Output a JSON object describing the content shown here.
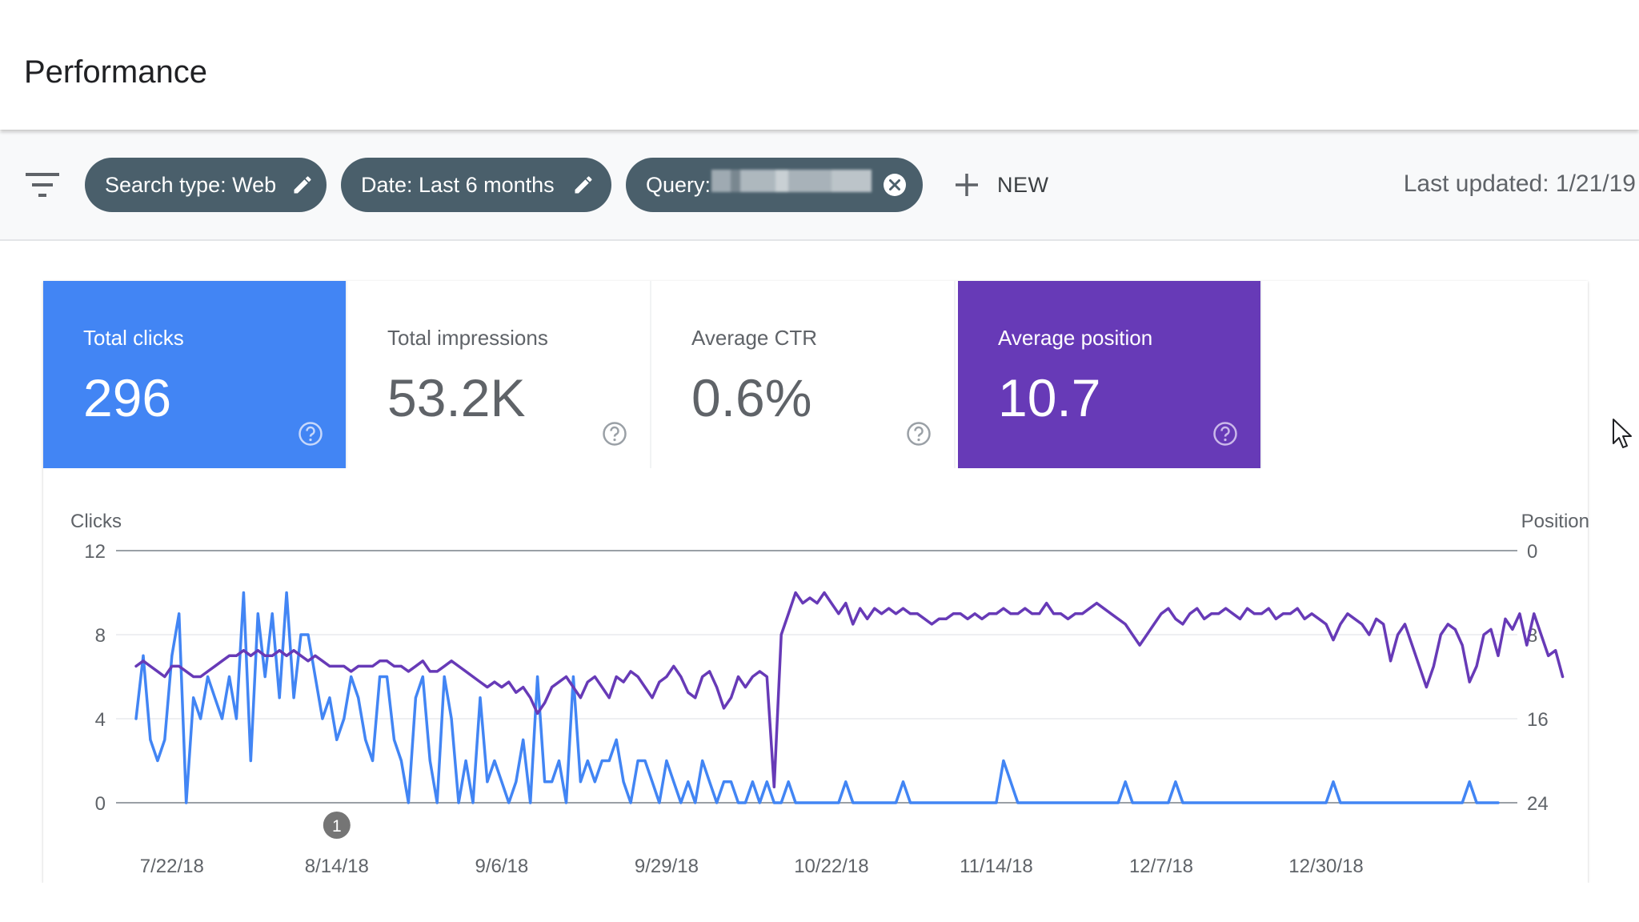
{
  "page": {
    "title": "Performance"
  },
  "filters": {
    "chips": [
      {
        "label": "Search type: Web"
      },
      {
        "label": "Date: Last 6 months"
      },
      {
        "label": "Query:"
      }
    ],
    "new_label": "NEW",
    "last_updated": "Last updated: 1/21/19"
  },
  "metrics": [
    {
      "label": "Total clicks",
      "value": "296",
      "selected": true,
      "color": "#4285f4"
    },
    {
      "label": "Total impressions",
      "value": "53.2K",
      "selected": false
    },
    {
      "label": "Average CTR",
      "value": "0.6%",
      "selected": false
    },
    {
      "label": "Average position",
      "value": "10.7",
      "selected": true,
      "color": "#673ab7"
    }
  ],
  "chart_data": {
    "type": "line",
    "left_axis_title": "Clicks",
    "right_axis_title": "Position",
    "left_ticks": [
      "12",
      "8",
      "4",
      "0"
    ],
    "right_ticks": [
      "0",
      "8",
      "16",
      "24"
    ],
    "ylim_left": [
      0,
      12
    ],
    "ylim_right_inverted": [
      0,
      24
    ],
    "x_ticks": [
      {
        "label": "7/22/18",
        "day": 5
      },
      {
        "label": "8/14/18",
        "day": 28
      },
      {
        "label": "9/6/18",
        "day": 51
      },
      {
        "label": "9/29/18",
        "day": 74
      },
      {
        "label": "10/22/18",
        "day": 97
      },
      {
        "label": "11/14/18",
        "day": 120
      },
      {
        "label": "12/7/18",
        "day": 143
      },
      {
        "label": "12/30/18",
        "day": 166
      }
    ],
    "annotation": {
      "label": "1",
      "day": 28
    },
    "series": [
      {
        "name": "Clicks",
        "axis": "left",
        "color": "#4285f4",
        "values": [
          4,
          7,
          3,
          2,
          3,
          7,
          9,
          0,
          5,
          4,
          6,
          5,
          4,
          6,
          4,
          10,
          2,
          9,
          6,
          9,
          5,
          10,
          5,
          8,
          8,
          6,
          4,
          5,
          3,
          4,
          6,
          5,
          3,
          2,
          6,
          6,
          3,
          2,
          0,
          5,
          6,
          2,
          0,
          6,
          4,
          0,
          2,
          0,
          5,
          1,
          2,
          1,
          0,
          1,
          3,
          0,
          6,
          1,
          1,
          2,
          0,
          6,
          1,
          2,
          1,
          2,
          2,
          3,
          1,
          0,
          2,
          2,
          1,
          0,
          2,
          1,
          0,
          1,
          0,
          2,
          1,
          0,
          1,
          1,
          0,
          0,
          1,
          0,
          1,
          0,
          0,
          1,
          0,
          0,
          0,
          0,
          0,
          0,
          0,
          1,
          0,
          0,
          0,
          0,
          0,
          0,
          0,
          1,
          0,
          0,
          0,
          0,
          0,
          0,
          0,
          0,
          0,
          0,
          0,
          0,
          0,
          2,
          1,
          0,
          0,
          0,
          0,
          0,
          0,
          0,
          0,
          0,
          0,
          0,
          0,
          0,
          0,
          0,
          1,
          0,
          0,
          0,
          0,
          0,
          0,
          1,
          0,
          0,
          0,
          0,
          0,
          0,
          0,
          0,
          0,
          0,
          0,
          0,
          0,
          0,
          0,
          0,
          0,
          0,
          0,
          0,
          0,
          1,
          0,
          0,
          0,
          0,
          0,
          0,
          0,
          0,
          0,
          0,
          0,
          0,
          0,
          0,
          0,
          0,
          0,
          0,
          1,
          0,
          0,
          0,
          0
        ]
      },
      {
        "name": "Position",
        "axis": "right",
        "color": "#673ab7",
        "values": [
          11,
          10.5,
          11,
          11.5,
          12,
          11,
          11,
          11.5,
          12,
          12,
          11.5,
          11,
          10.5,
          10,
          10,
          9.5,
          10,
          9.5,
          10,
          10,
          9.5,
          10,
          9.5,
          10,
          10.5,
          10,
          10.5,
          11,
          11,
          11,
          11.5,
          11,
          11,
          11,
          10.5,
          10.5,
          11,
          11,
          11.5,
          11,
          10.5,
          11.5,
          11.5,
          11,
          10.5,
          11,
          11.5,
          12,
          12.5,
          13,
          12.5,
          13,
          12.5,
          13.5,
          13,
          14,
          15.5,
          14.5,
          13,
          12.5,
          12,
          13,
          14,
          12.5,
          12,
          13,
          14,
          12,
          12.5,
          11.5,
          12,
          13,
          14,
          12.5,
          12,
          11,
          12,
          13.5,
          14,
          12,
          11.5,
          13,
          15,
          14,
          12,
          13,
          12,
          11.5,
          12,
          22.5,
          8,
          6,
          4,
          5,
          4.5,
          5,
          4,
          5,
          6,
          5,
          7,
          5.5,
          6.5,
          5.5,
          6,
          5.5,
          6,
          5.5,
          6,
          6,
          6.5,
          7,
          6.5,
          6.5,
          6,
          6,
          6.5,
          6,
          6.5,
          6,
          6,
          5.5,
          6,
          6,
          5.5,
          6,
          6,
          5,
          6,
          6,
          6.5,
          6,
          6,
          5.5,
          5,
          5.5,
          6,
          6.5,
          7,
          8,
          9,
          8,
          7,
          6,
          5.5,
          6.5,
          7,
          6,
          5.5,
          6.5,
          6,
          6,
          5.5,
          6,
          6.5,
          5.5,
          6,
          6,
          5.5,
          6.5,
          6,
          6,
          5.5,
          6.5,
          6,
          6.5,
          7,
          8.5,
          7,
          6,
          6.5,
          7,
          8,
          6.5,
          7,
          10.5,
          8,
          7,
          9,
          11,
          13,
          11,
          8,
          7,
          7.5,
          9,
          12.5,
          11,
          8,
          7.5,
          10,
          6.5,
          7.5,
          6,
          9,
          6,
          8,
          10,
          9.5,
          12
        ]
      }
    ]
  }
}
